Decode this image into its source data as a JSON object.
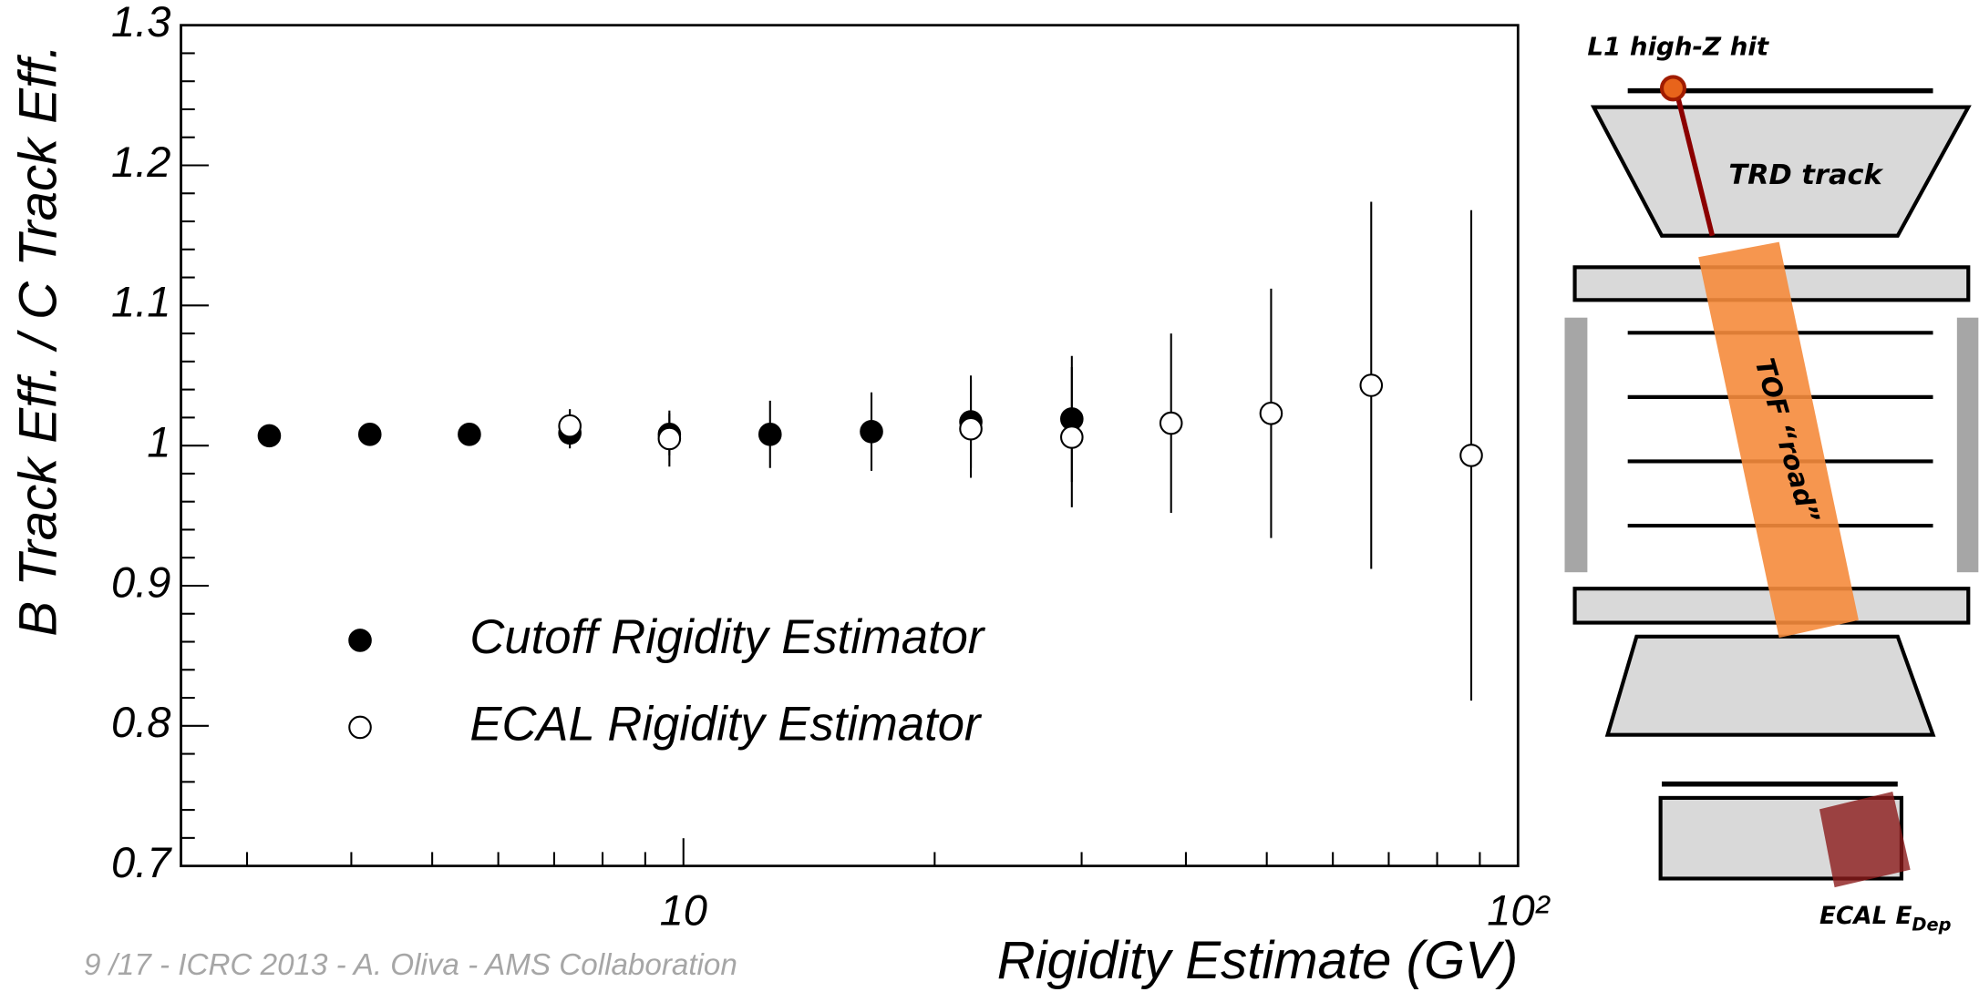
{
  "chart_data": {
    "type": "scatter",
    "xlabel": "Rigidity Estimate (GV)",
    "ylabel": "B Track Eff. / C Track Eff.",
    "xscale": "log",
    "xlim": [
      2.5,
      100
    ],
    "ylim": [
      0.7,
      1.3
    ],
    "xticks": [
      10,
      {
        "value": 100,
        "label": "10²"
      }
    ],
    "xminorticks": [
      3,
      4,
      5,
      6,
      7,
      8,
      9,
      20,
      30,
      40,
      50,
      60,
      70,
      80,
      90
    ],
    "yticks": [
      0.7,
      0.8,
      0.9,
      1,
      1.1,
      1.2,
      1.3
    ],
    "yminorticks": [
      0.72,
      0.74,
      0.76,
      0.78,
      0.82,
      0.84,
      0.86,
      0.88,
      0.92,
      0.94,
      0.96,
      0.98,
      1.02,
      1.04,
      1.06,
      1.08,
      1.12,
      1.14,
      1.16,
      1.18,
      1.22,
      1.24,
      1.26,
      1.28
    ],
    "legend": "lower left",
    "series": [
      {
        "name": "Cutoff Rigidity Estimator",
        "marker": "filled",
        "color": "#000000",
        "x": [
          3.19,
          4.21,
          5.54,
          7.31,
          9.62,
          12.7,
          16.8,
          22.1,
          29.2
        ],
        "values": [
          1.007,
          1.008,
          1.008,
          1.009,
          1.008,
          1.008,
          1.01,
          1.017,
          1.019
        ],
        "errors": [
          0.003,
          0.003,
          0.003,
          0.011,
          0.015,
          0.024,
          0.028,
          0.033,
          0.045
        ]
      },
      {
        "name": "ECAL Rigidity Estimator",
        "marker": "open",
        "color": "#000000",
        "x": [
          7.31,
          9.62,
          22.1,
          29.2,
          38.4,
          50.6,
          66.7,
          87.9
        ],
        "values": [
          1.014,
          1.005,
          1.012,
          1.006,
          1.016,
          1.023,
          1.043,
          0.993
        ],
        "errors": [
          0.012,
          0.02,
          0.035,
          0.05,
          0.064,
          0.089,
          0.131,
          0.175
        ]
      }
    ]
  },
  "diagram": {
    "l1": "L1 high-Z hit",
    "trd": "TRD track",
    "tof": "TOF “road”",
    "ecal": "ECAL E",
    "ecal_sub": "Dep"
  },
  "footer": "9  /17 - ICRC 2013 - A. Oliva - AMS Collaboration"
}
